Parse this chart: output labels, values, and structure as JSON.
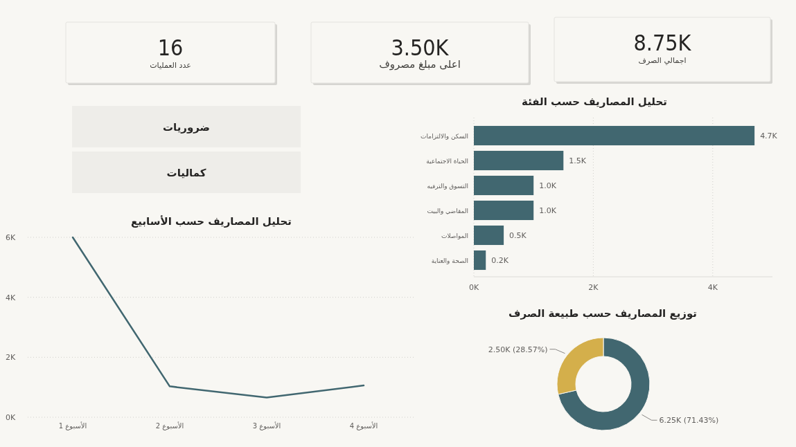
{
  "chart_data": [
    {
      "type": "other",
      "annotations": [
        "16",
        "عدد العمليات"
      ]
    },
    {
      "type": "other",
      "annotations": [
        "3.50K",
        "اعلى مبلغ مصروف"
      ]
    },
    {
      "type": "other",
      "annotations": [
        "8.75K",
        "اجمالي الصرف"
      ]
    },
    {
      "type": "other",
      "annotations": [
        "ضروريات",
        "كماليات"
      ]
    },
    {
      "type": "line",
      "title": "تحليل المصاريف حسب الأسابيع",
      "categories": [
        "الأسبوع 1",
        "الأسبوع 2",
        "الأسبوع 3",
        "الأسبوع 4"
      ],
      "values": [
        6.0,
        1.03,
        0.66,
        1.06
      ],
      "color": "#416770",
      "ylim": [
        0,
        6
      ],
      "yticks": [
        {
          "value": 0,
          "label": "0K"
        },
        {
          "value": 2,
          "label": "2K"
        },
        {
          "value": 4,
          "label": "4K"
        },
        {
          "value": 6,
          "label": "6K"
        }
      ],
      "grid": "y"
    },
    {
      "type": "bar",
      "orientation": "horizontal",
      "title": "تحليل المصاريف حسب الفئة",
      "categories": [
        "السكن والالتزامات",
        "الحياة الاجتماعية",
        "التسوق والترفيه",
        "المقاضي والبيت",
        "المواصلات",
        "الصحة والعناية"
      ],
      "values": [
        4.7,
        1.5,
        1.0,
        1.0,
        0.5,
        0.2
      ],
      "value_labels": [
        "4.7K",
        "1.5K",
        "1.0K",
        "1.0K",
        "0.5K",
        "0.2K"
      ],
      "color": "#416770",
      "xlim": [
        0,
        5
      ],
      "xticks": [
        {
          "value": 0,
          "label": "0K"
        },
        {
          "value": 2,
          "label": "2K"
        },
        {
          "value": 4,
          "label": "4K"
        }
      ],
      "grid": "x"
    },
    {
      "type": "donut",
      "title": "توزيع المصاريف حسب طبيعة الصرف",
      "categories": [
        null,
        null
      ],
      "values": [
        71.43,
        28.57
      ],
      "value_labels": [
        "6.25K (71.43%)",
        "2.50K (28.57%)"
      ],
      "colors": [
        "#416770",
        "#d4af4b"
      ]
    }
  ]
}
